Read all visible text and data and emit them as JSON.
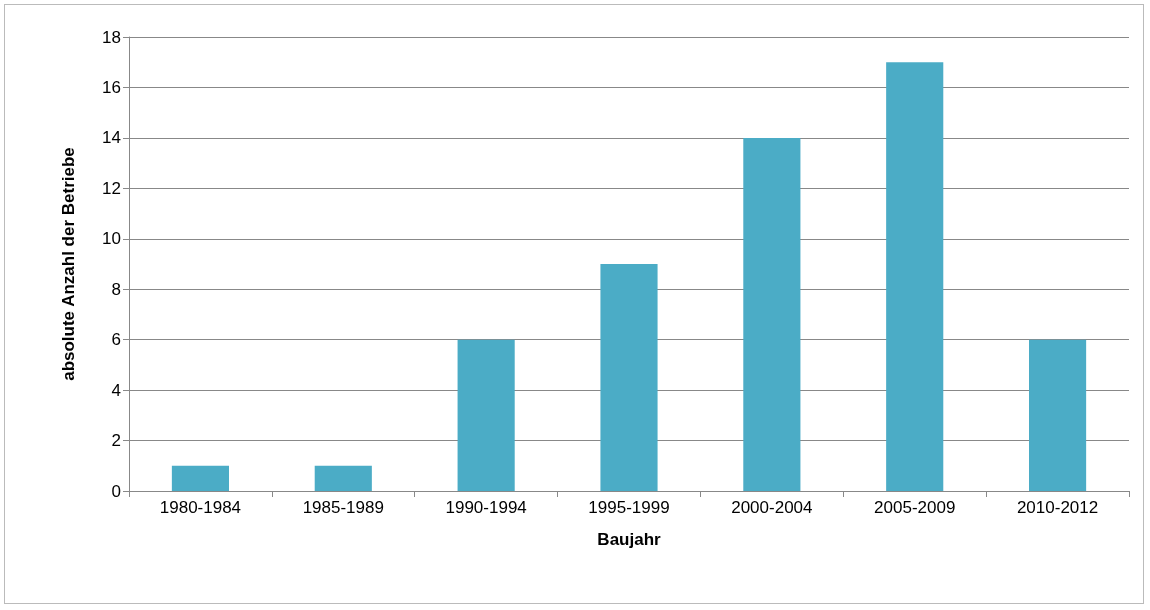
{
  "chart_data": {
    "type": "bar",
    "xlabel": "Baujahr",
    "ylabel": "absolute Anzahl der Betriebe",
    "categories": [
      "1980-1984",
      "1985-1989",
      "1990-1994",
      "1995-1999",
      "2000-2004",
      "2005-2009",
      "2010-2012"
    ],
    "values": [
      1,
      1,
      6,
      9,
      14,
      17,
      6
    ],
    "color": "#4bacc6",
    "ylim": [
      0,
      18
    ],
    "yticks": [
      0,
      2,
      4,
      6,
      8,
      10,
      12,
      14,
      16,
      18
    ],
    "grid": "y"
  }
}
